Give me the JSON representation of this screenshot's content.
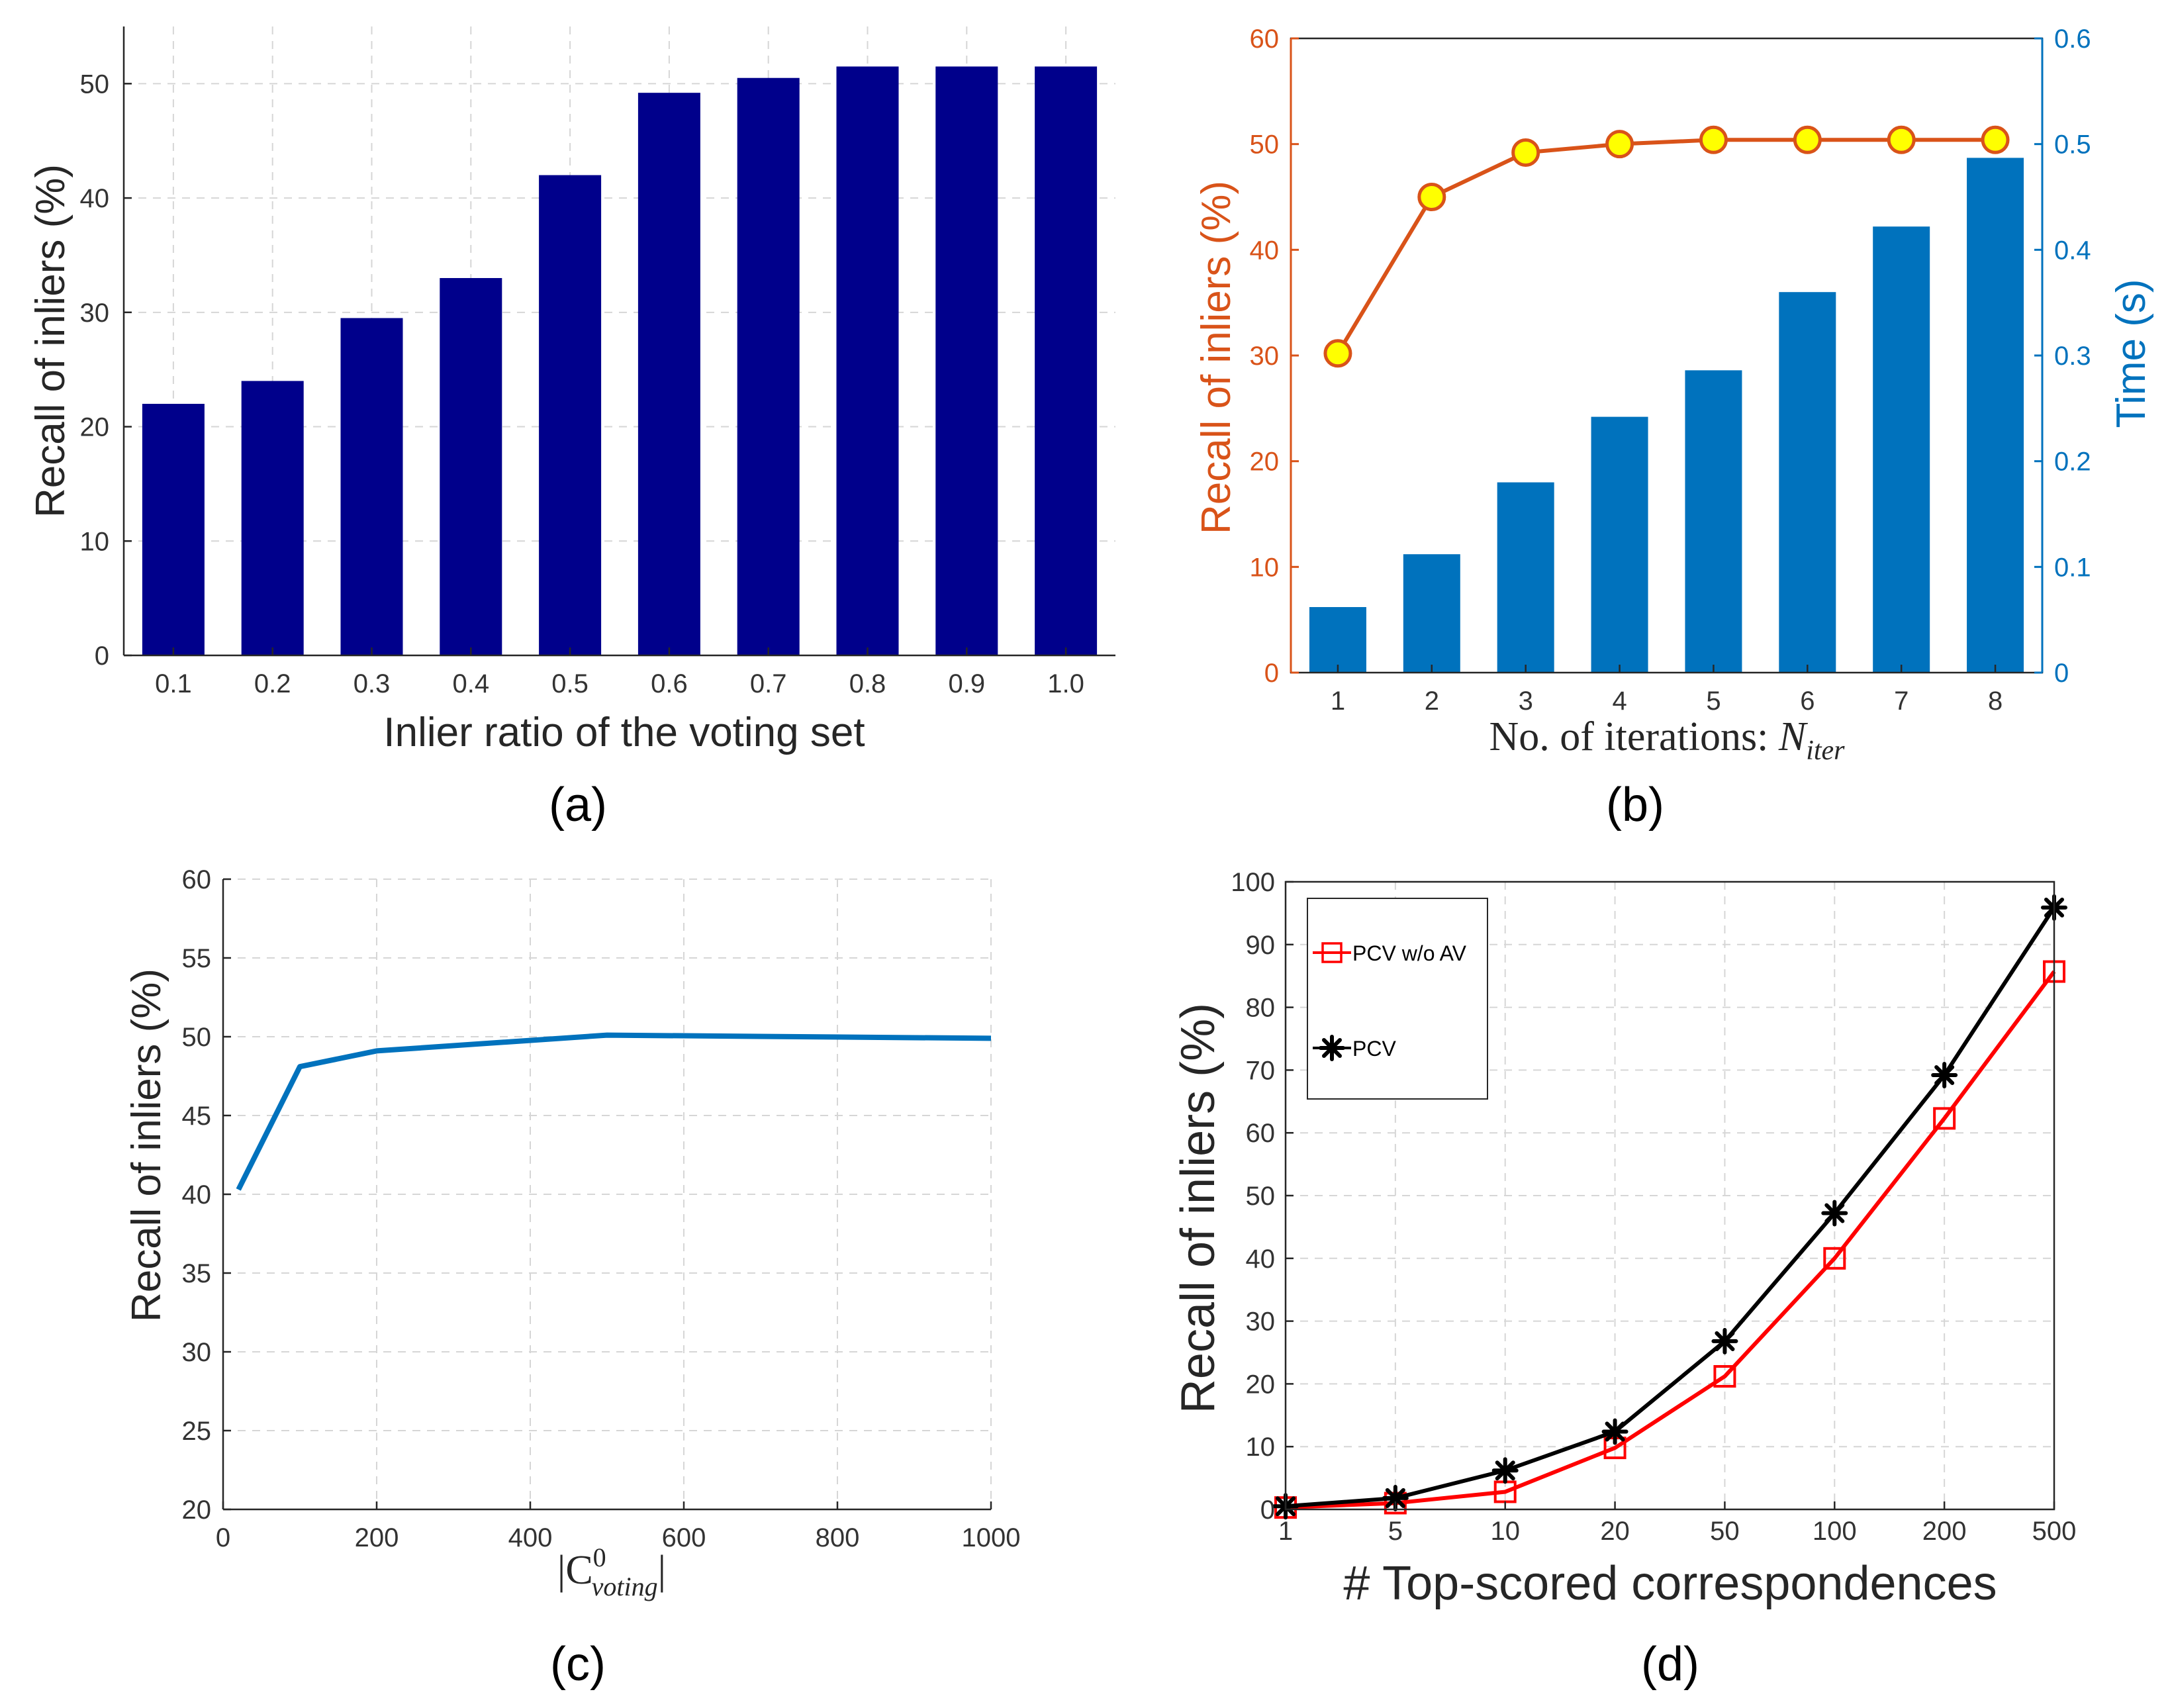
{
  "chart_data": [
    {
      "id": "a",
      "type": "bar",
      "caption": "(a)",
      "categories": [
        "0.1",
        "0.2",
        "0.3",
        "0.4",
        "0.5",
        "0.6",
        "0.7",
        "0.8",
        "0.9",
        "1.0"
      ],
      "values": [
        22,
        24,
        29.5,
        33,
        42,
        49.2,
        50.5,
        51.5,
        51.5,
        51.5
      ],
      "xlabel": "Inlier ratio of the voting set",
      "ylabel": "Recall of inliers (%)",
      "ylim": [
        0,
        55
      ],
      "yticks": [
        0,
        10,
        20,
        30,
        40,
        50
      ],
      "grid": true,
      "colors": {
        "bar": "#00008b"
      }
    },
    {
      "id": "b",
      "type": "bar+line",
      "caption": "(b)",
      "categories": [
        "1",
        "2",
        "3",
        "4",
        "5",
        "6",
        "7",
        "8"
      ],
      "series": [
        {
          "name": "Time (s)",
          "kind": "bar",
          "axis": "right",
          "values": [
            0.062,
            0.112,
            0.18,
            0.242,
            0.286,
            0.36,
            0.422,
            0.487
          ]
        },
        {
          "name": "Recall of inliers (%)",
          "kind": "line",
          "axis": "left",
          "values": [
            30.2,
            45,
            49.2,
            50,
            50.4,
            50.4,
            50.4,
            50.4
          ]
        }
      ],
      "xlabel": "No. of iterations: ",
      "xlabel_math": "N",
      "xlabel_sub": "iter",
      "ylabel": "Recall of inliers (%)",
      "ylabel_right": "Time (s)",
      "ylim": [
        0,
        60
      ],
      "ylim_right": [
        0,
        0.6
      ],
      "yticks": [
        0,
        10,
        20,
        30,
        40,
        50,
        60
      ],
      "yticks_right": [
        "0",
        "0.1",
        "0.2",
        "0.3",
        "0.4",
        "0.5",
        "0.6"
      ],
      "grid": false,
      "colors": {
        "bar": "#0072bd",
        "line": "#d95319",
        "marker": "#ffff00",
        "right_axis": "#0072bd"
      }
    },
    {
      "id": "c",
      "type": "line",
      "caption": "(c)",
      "x": [
        20,
        100,
        200,
        500,
        1000
      ],
      "y": [
        40.3,
        48.1,
        49.1,
        50.1,
        49.9
      ],
      "xlabel_base": "|C",
      "xlabel_sup": "0",
      "xlabel_sub": "voting",
      "xlabel_end": "|",
      "ylabel": "Recall of inliers (%)",
      "xlim": [
        0,
        1000
      ],
      "ylim": [
        20,
        60
      ],
      "xticks": [
        0,
        200,
        400,
        600,
        800,
        1000
      ],
      "yticks": [
        20,
        25,
        30,
        35,
        40,
        45,
        50,
        55,
        60
      ],
      "grid": true,
      "colors": {
        "line": "#0072bd"
      }
    },
    {
      "id": "d",
      "type": "line",
      "caption": "(d)",
      "categories": [
        "1",
        "5",
        "10",
        "20",
        "50",
        "100",
        "200",
        "500"
      ],
      "series": [
        {
          "name": "PCV w/o AV",
          "values": [
            0.3,
            1.0,
            2.8,
            9.8,
            21.2,
            40,
            62.3,
            85.7
          ],
          "color": "#ff0000",
          "marker": "square"
        },
        {
          "name": "PCV",
          "values": [
            0.5,
            1.8,
            6.2,
            12.4,
            26.8,
            47.2,
            69.2,
            95.9
          ],
          "color": "#000000",
          "marker": "asterisk"
        }
      ],
      "xlabel": "# Top-scored correspondences",
      "ylabel": "Recall of inliers (%)",
      "ylim": [
        0,
        100
      ],
      "yticks": [
        0,
        10,
        20,
        30,
        40,
        50,
        60,
        70,
        80,
        90,
        100
      ],
      "legend": "top-left",
      "grid": true
    }
  ]
}
